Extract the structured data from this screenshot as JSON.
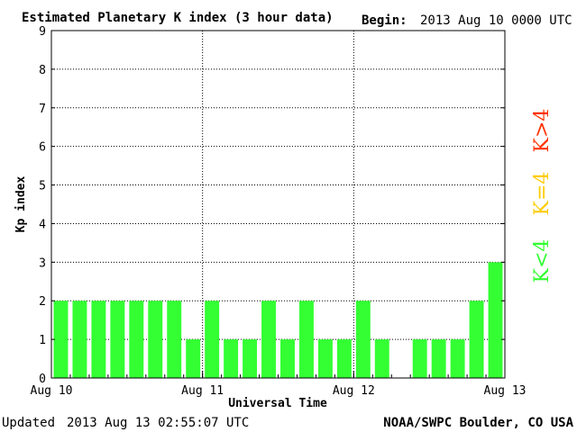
{
  "header": {
    "title": "Estimated Planetary K index (3 hour data)",
    "begin_label": "Begin:",
    "begin_value": "2013 Aug 10 0000 UTC"
  },
  "footer": {
    "updated_label": "Updated",
    "updated_value": "2013 Aug 13 02:55:07 UTC",
    "source": "NOAA/SWPC Boulder, CO USA"
  },
  "legend": [
    {
      "label": "K<4",
      "color": "#33ff33"
    },
    {
      "label": "K=4",
      "color": "#ffcc00"
    },
    {
      "label": "K>4",
      "color": "#ff3300"
    }
  ],
  "chart_data": {
    "type": "bar",
    "title": "Estimated Planetary K index (3 hour data)",
    "xlabel": "Universal Time",
    "ylabel": "Kp index",
    "ylim": [
      0,
      9
    ],
    "yticks": [
      0,
      1,
      2,
      3,
      4,
      5,
      6,
      7,
      8,
      9
    ],
    "x_tick_labels": [
      "Aug 10",
      "Aug 11",
      "Aug 12",
      "Aug 13"
    ],
    "intervals_per_day": 8,
    "values": [
      2,
      2,
      2,
      2,
      2,
      2,
      2,
      1,
      2,
      1,
      1,
      2,
      1,
      2,
      1,
      1,
      2,
      1,
      0,
      1,
      1,
      1,
      2,
      3
    ],
    "bar_color": "#33ff33",
    "grid": "dotted"
  }
}
